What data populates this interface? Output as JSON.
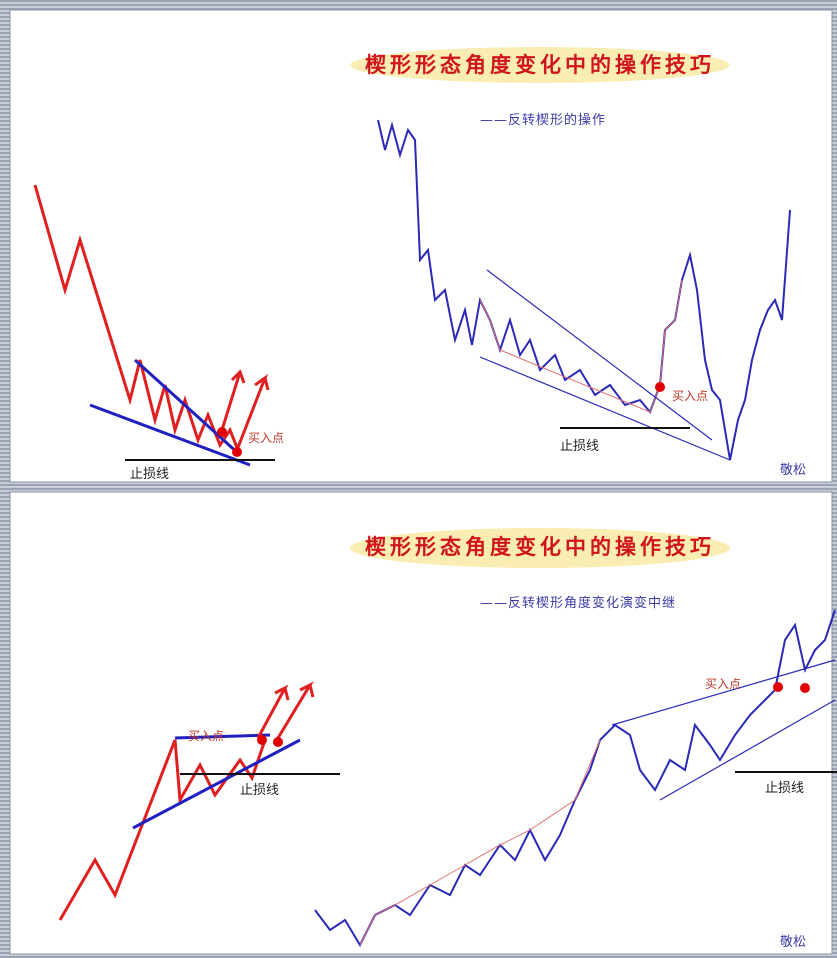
{
  "panels": [
    {
      "title": "楔形形态角度变化中的操作技巧",
      "subtitle": "——反转楔形的操作",
      "left_sketch": {
        "buy_label": "买入点",
        "stop_label": "止损线"
      },
      "right_chart": {
        "buy_label": "买入点",
        "stop_label": "止损线"
      },
      "signature": "敬松"
    },
    {
      "title": "楔形形态角度变化中的操作技巧",
      "subtitle": "——反转楔形角度变化演变中继",
      "left_sketch": {
        "buy_label": "买入点",
        "stop_label": "止损线"
      },
      "right_chart": {
        "buy_label": "买入点",
        "stop_label": "止损线"
      },
      "signature": "敬松"
    }
  ]
}
